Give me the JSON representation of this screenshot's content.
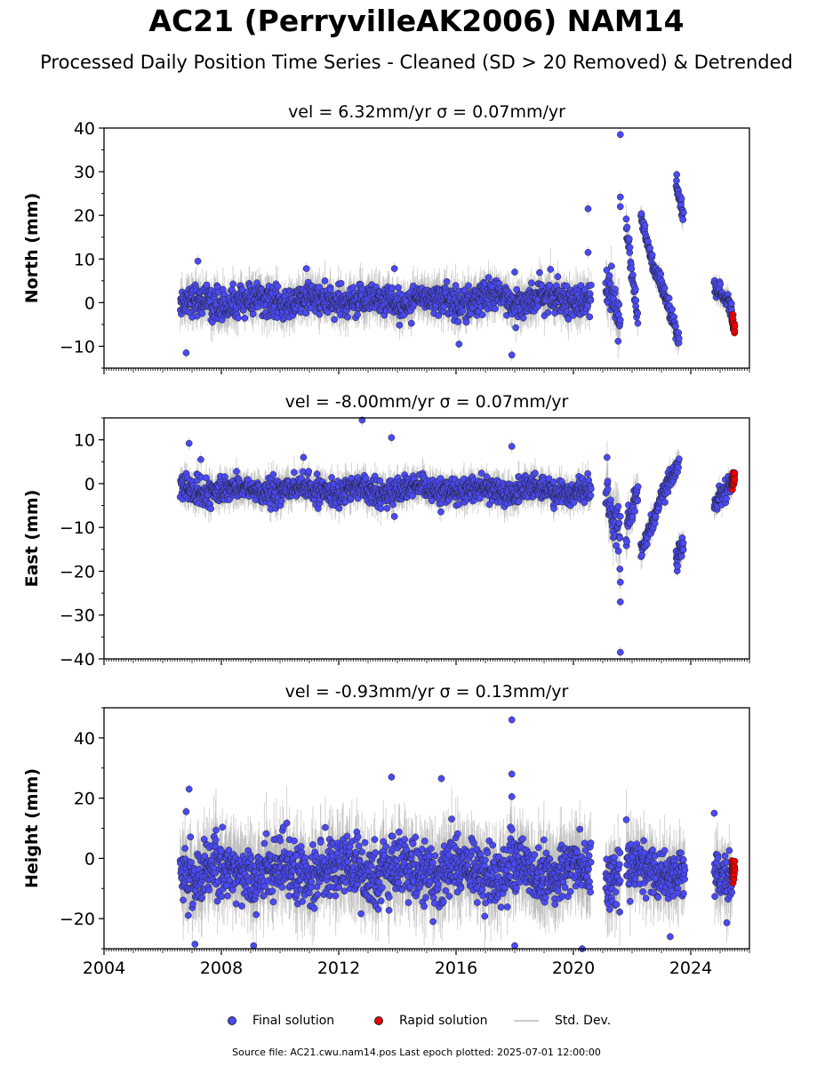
{
  "title": "AC21 (PerryvilleAK2006) NAM14",
  "subtitle": "Processed Daily Position Time Series - Cleaned (SD > 20 Removed) & Detrended",
  "legend": {
    "final": "Final solution",
    "rapid": "Rapid solution",
    "std": "Std. Dev."
  },
  "footnote": "Source file: AC21.cwu.nam14.pos  Last epoch plotted: 2025-07-01 12:00:00",
  "colors": {
    "final": "#4a4af4",
    "rapid": "#ee0000",
    "stddev": "#b0b0b0"
  },
  "chart_data": [
    {
      "type": "scatter",
      "panel": "north",
      "title": "vel = 6.32mm/yr   σ = 0.07mm/yr",
      "ylabel": "North (mm)",
      "xlim": [
        2004.0,
        2026.0
      ],
      "ylim": [
        -15,
        40
      ],
      "yticks": [
        -10,
        0,
        10,
        20,
        30,
        40
      ],
      "xticks": [],
      "segments": [
        {
          "x_start": 2006.6,
          "x_end": 2020.6,
          "y_start": 0,
          "y_end": 1,
          "spread": 2.5,
          "kind": "final"
        },
        {
          "x_start": 2021.1,
          "x_end": 2021.6,
          "y_start": 3,
          "y_end": -4,
          "spread": 3.0,
          "kind": "final"
        },
        {
          "x_start": 2021.8,
          "x_end": 2022.2,
          "y_start": 17,
          "y_end": -3,
          "spread": 2.0,
          "kind": "final"
        },
        {
          "x_start": 2022.3,
          "x_end": 2022.7,
          "y_start": 21,
          "y_end": 9,
          "spread": 1.5,
          "kind": "final"
        },
        {
          "x_start": 2022.7,
          "x_end": 2023.6,
          "y_start": 9,
          "y_end": -9,
          "spread": 1.5,
          "kind": "final"
        },
        {
          "x_start": 2023.5,
          "x_end": 2023.75,
          "y_start": 27,
          "y_end": 20,
          "spread": 1.5,
          "kind": "final"
        },
        {
          "x_start": 2024.8,
          "x_end": 2025.4,
          "y_start": 4,
          "y_end": -2,
          "spread": 1.5,
          "kind": "final"
        },
        {
          "x_start": 2025.4,
          "x_end": 2025.5,
          "y_start": -4,
          "y_end": -6,
          "spread": 1.0,
          "kind": "rapid"
        }
      ],
      "outliers": [
        [
          2006.8,
          -11.5
        ],
        [
          2007.2,
          9.5
        ],
        [
          2010.9,
          7.8
        ],
        [
          2013.9,
          7.8
        ],
        [
          2016.1,
          -9.5
        ],
        [
          2017.9,
          -12.0
        ],
        [
          2018.0,
          7.0
        ],
        [
          2020.5,
          21.5
        ],
        [
          2020.5,
          11.5
        ],
        [
          2021.6,
          38.5
        ],
        [
          2021.6,
          24.2
        ],
        [
          2021.6,
          22.0
        ]
      ]
    },
    {
      "type": "scatter",
      "panel": "east",
      "title": "vel = -8.00mm/yr   σ = 0.07mm/yr",
      "ylabel": "East (mm)",
      "xlim": [
        2004.0,
        2026.0
      ],
      "ylim": [
        -40,
        15
      ],
      "yticks": [
        -40,
        -30,
        -20,
        -10,
        0,
        10
      ],
      "xticks": [],
      "segments": [
        {
          "x_start": 2006.6,
          "x_end": 2020.6,
          "y_start": -1.5,
          "y_end": -1.5,
          "spread": 2.0,
          "kind": "final"
        },
        {
          "x_start": 2021.1,
          "x_end": 2021.6,
          "y_start": -1,
          "y_end": -12,
          "spread": 4.0,
          "kind": "final"
        },
        {
          "x_start": 2021.8,
          "x_end": 2022.2,
          "y_start": -10,
          "y_end": -2,
          "spread": 2.0,
          "kind": "final"
        },
        {
          "x_start": 2022.3,
          "x_end": 2022.7,
          "y_start": -16,
          "y_end": -9,
          "spread": 1.5,
          "kind": "final"
        },
        {
          "x_start": 2022.7,
          "x_end": 2023.6,
          "y_start": -9,
          "y_end": 6,
          "spread": 1.5,
          "kind": "final"
        },
        {
          "x_start": 2023.5,
          "x_end": 2023.75,
          "y_start": -17,
          "y_end": -13,
          "spread": 1.5,
          "kind": "final"
        },
        {
          "x_start": 2024.8,
          "x_end": 2025.4,
          "y_start": -5,
          "y_end": 0,
          "spread": 1.5,
          "kind": "final"
        },
        {
          "x_start": 2025.4,
          "x_end": 2025.5,
          "y_start": 0,
          "y_end": 2,
          "spread": 1.0,
          "kind": "rapid"
        }
      ],
      "outliers": [
        [
          2006.9,
          9.2
        ],
        [
          2007.3,
          5.5
        ],
        [
          2010.8,
          6.0
        ],
        [
          2012.8,
          14.5
        ],
        [
          2013.8,
          10.5
        ],
        [
          2013.9,
          -7.5
        ],
        [
          2017.9,
          8.5
        ],
        [
          2021.6,
          -38.5
        ],
        [
          2021.6,
          -27.0
        ],
        [
          2021.6,
          -22.5
        ]
      ]
    },
    {
      "type": "scatter",
      "panel": "height",
      "title": "vel = -0.93mm/yr   σ = 0.13mm/yr",
      "ylabel": "Height (mm)",
      "xlim": [
        2004.0,
        2026.0
      ],
      "ylim": [
        -30,
        50
      ],
      "yticks": [
        -20,
        0,
        20,
        40
      ],
      "xticks": [
        2004,
        2008,
        2012,
        2016,
        2020,
        2024
      ],
      "segments": [
        {
          "x_start": 2006.6,
          "x_end": 2020.6,
          "y_start": -4,
          "y_end": -4,
          "spread": 7.0,
          "kind": "final"
        },
        {
          "x_start": 2021.1,
          "x_end": 2021.6,
          "y_start": -6,
          "y_end": -6,
          "spread": 6.0,
          "kind": "final"
        },
        {
          "x_start": 2021.8,
          "x_end": 2023.8,
          "y_start": -4,
          "y_end": -4,
          "spread": 6.0,
          "kind": "final"
        },
        {
          "x_start": 2024.8,
          "x_end": 2025.4,
          "y_start": -5,
          "y_end": -5,
          "spread": 6.0,
          "kind": "final"
        },
        {
          "x_start": 2025.4,
          "x_end": 2025.5,
          "y_start": -3,
          "y_end": -3,
          "spread": 3.0,
          "kind": "rapid"
        }
      ],
      "outliers": [
        [
          2006.9,
          23.0
        ],
        [
          2006.8,
          15.5
        ],
        [
          2007.1,
          -28.5
        ],
        [
          2009.1,
          -29.0
        ],
        [
          2013.8,
          27.0
        ],
        [
          2015.5,
          26.5
        ],
        [
          2017.9,
          46.0
        ],
        [
          2017.9,
          28.0
        ],
        [
          2017.9,
          20.5
        ],
        [
          2018.0,
          -29.0
        ],
        [
          2020.3,
          -30.0
        ],
        [
          2023.3,
          -26.0
        ],
        [
          2024.8,
          15.0
        ]
      ]
    }
  ]
}
